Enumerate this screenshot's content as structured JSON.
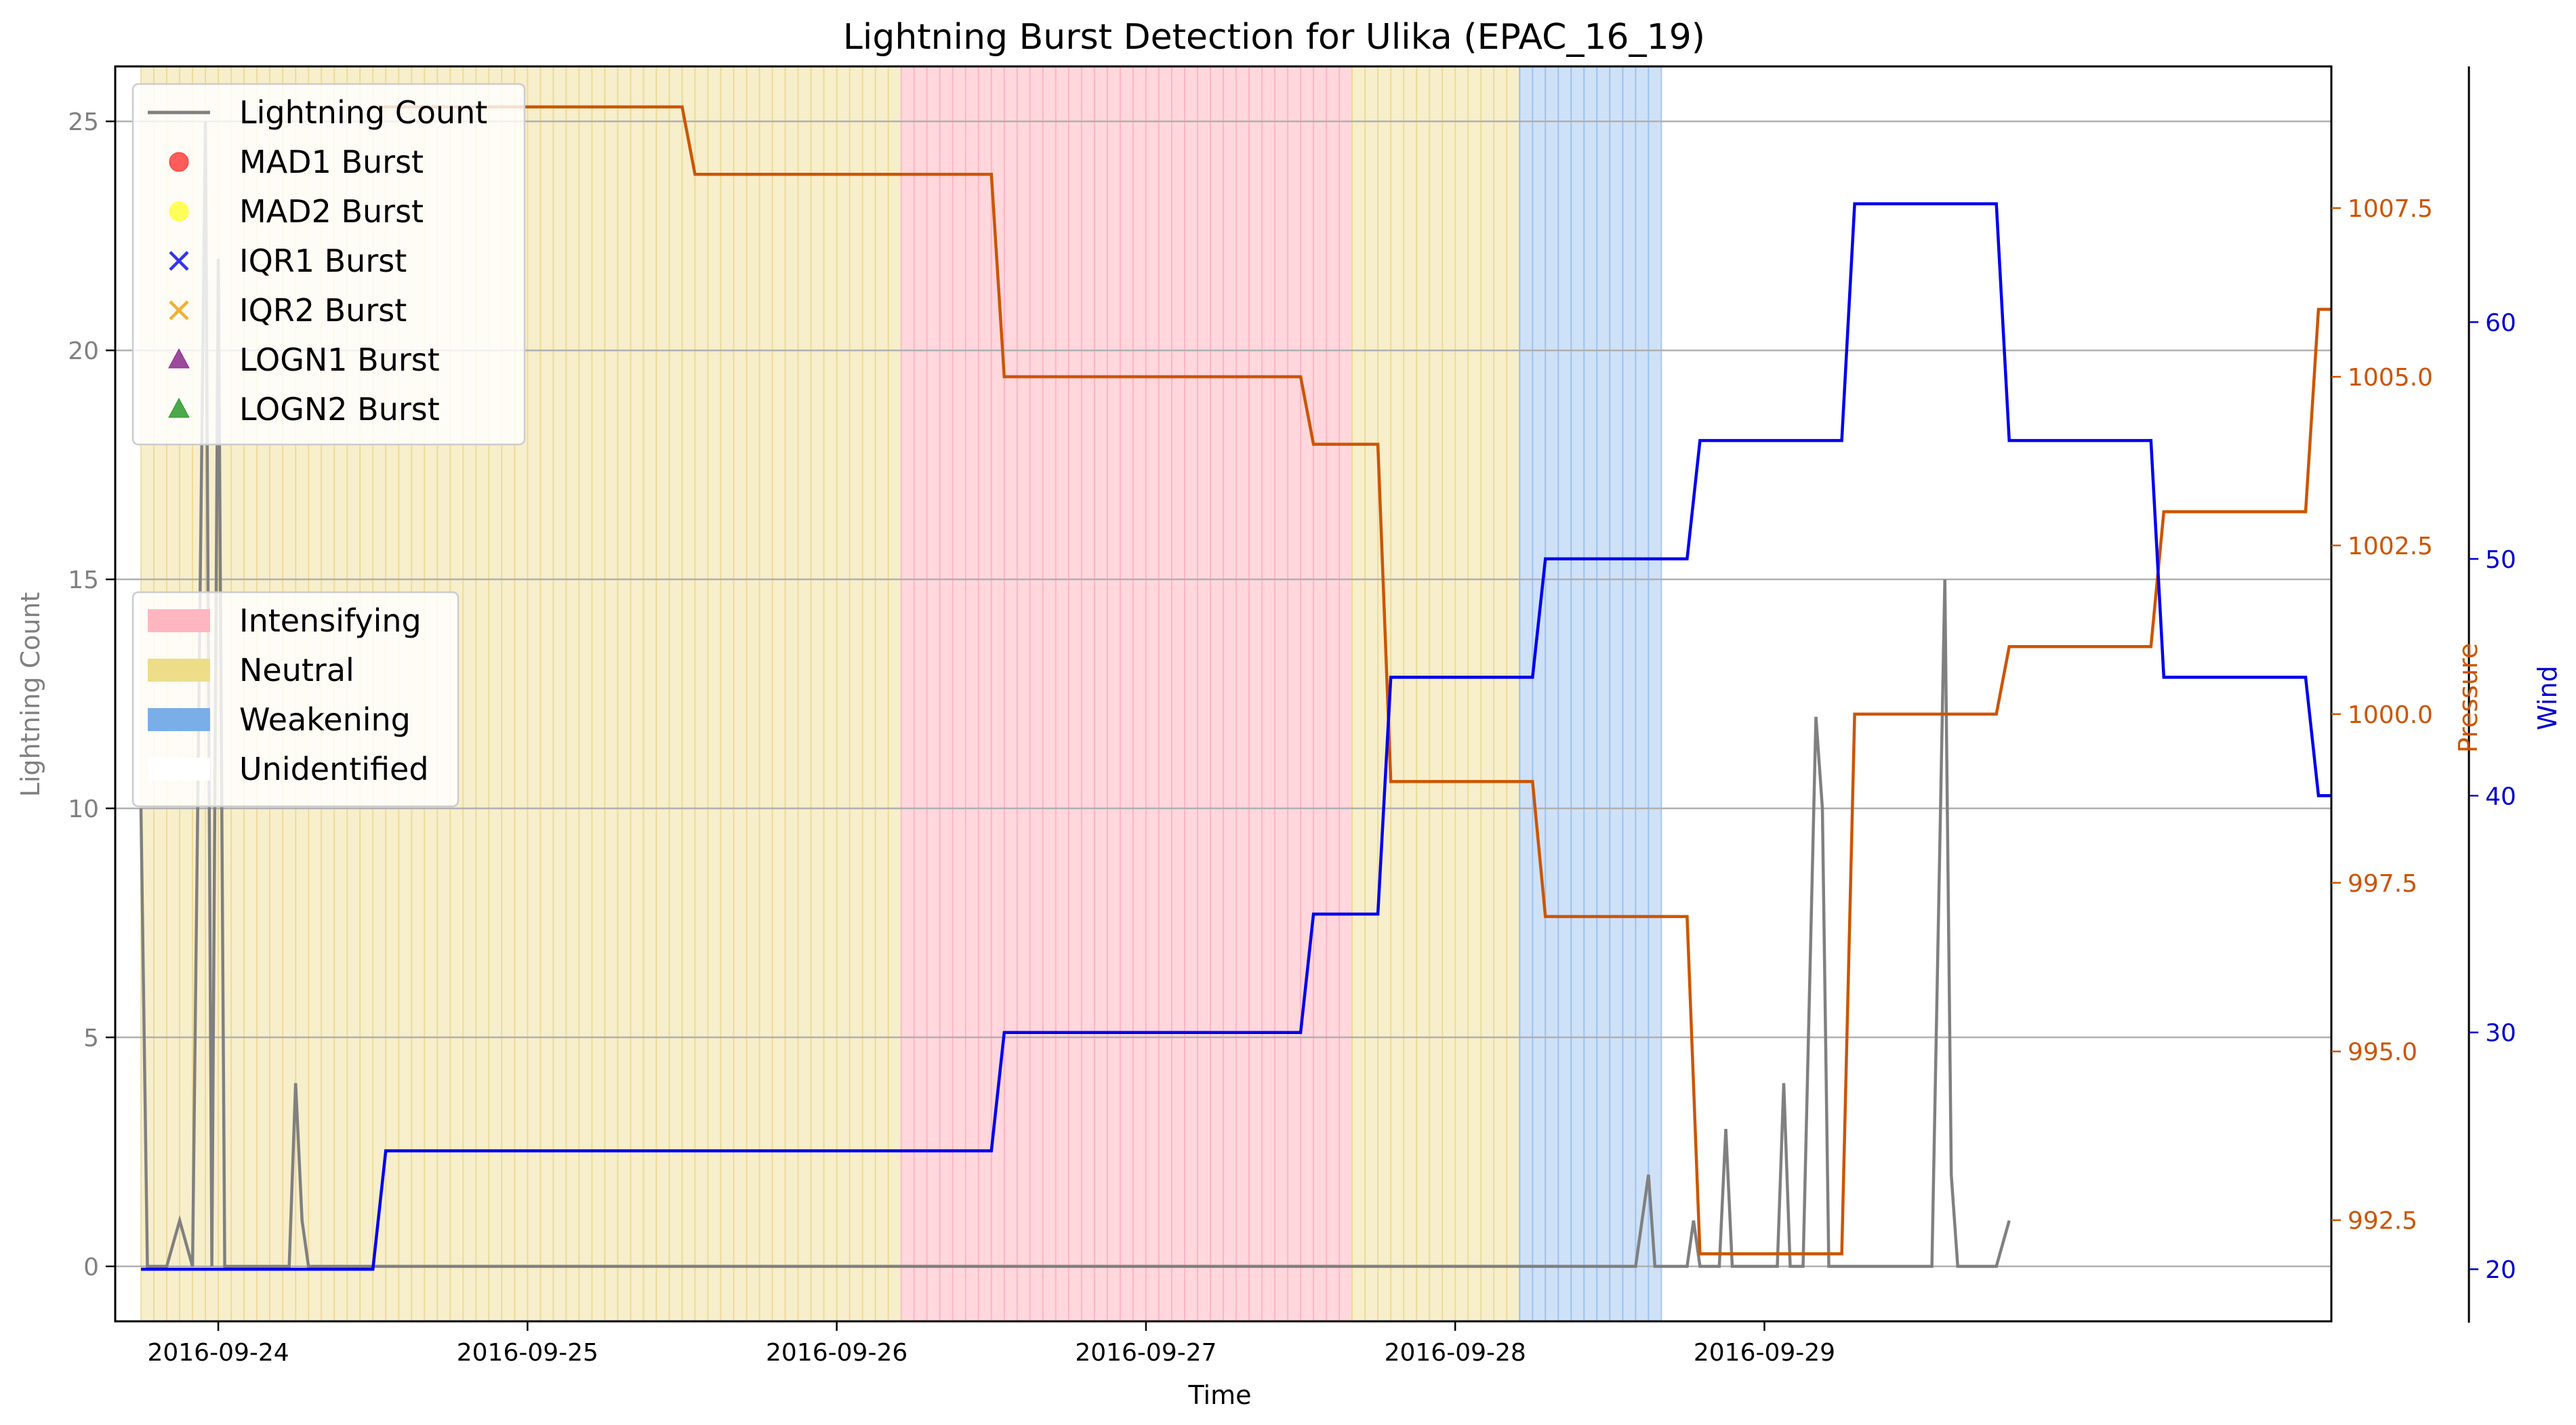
{
  "chart_data": {
    "type": "line",
    "title": "Lightning Burst Detection for Ulika (EPAC_16_19)",
    "xlabel": "Time",
    "ylabel_left": "Lightning Count",
    "ylabel_pressure": "Pressure",
    "ylabel_wind": "Wind",
    "x_ticks": [
      "2016-09-24",
      "2016-09-25",
      "2016-09-26",
      "2016-09-27",
      "2016-09-28",
      "2016-09-29"
    ],
    "xlim": [
      "2016-09-23 16:00",
      "2016-09-30 20:00"
    ],
    "lightning_ylim": [
      -1.2,
      26.2
    ],
    "lightning_ticks": [
      "0",
      "5",
      "10",
      "15",
      "20",
      "25"
    ],
    "pressure_ylim": [
      991.0,
      1009.6
    ],
    "pressure_ticks": [
      "992.5",
      "995.0",
      "997.5",
      "1000.0",
      "1002.5",
      "1005.0",
      "1007.5"
    ],
    "wind_ylim": [
      17.8,
      70.8
    ],
    "wind_ticks": [
      "20",
      "30",
      "40",
      "50",
      "60"
    ],
    "grid": "horizontal at lightning ticks",
    "colors": {
      "lightning": "#808080",
      "pressure": "#cc5500",
      "wind": "#0000ee",
      "intensifying": "#ffb6c1",
      "neutral": "#f0e0a0",
      "weakening": "#a8c8f0",
      "grid": "#b0b0b0"
    },
    "phases": [
      {
        "label": "Neutral",
        "start": "2016-09-23 18:00",
        "end": "2016-09-26 05:00"
      },
      {
        "label": "Intensifying",
        "start": "2016-09-26 05:00",
        "end": "2016-09-27 16:00"
      },
      {
        "label": "Neutral",
        "start": "2016-09-27 16:00",
        "end": "2016-09-28 05:00"
      },
      {
        "label": "Weakening",
        "start": "2016-09-28 05:00",
        "end": "2016-09-28 16:00"
      }
    ],
    "lightning": [
      [
        "2016-09-23 18:00",
        10
      ],
      [
        "2016-09-23 18:30",
        0
      ],
      [
        "2016-09-23 20:00",
        0
      ],
      [
        "2016-09-23 21:00",
        1
      ],
      [
        "2016-09-23 22:00",
        0
      ],
      [
        "2016-09-23 23:00",
        25
      ],
      [
        "2016-09-23 23:30",
        0
      ],
      [
        "2016-09-24 00:00",
        22
      ],
      [
        "2016-09-24 00:30",
        0
      ],
      [
        "2016-09-24 01:00",
        0
      ],
      [
        "2016-09-24 05:30",
        0
      ],
      [
        "2016-09-24 06:00",
        4
      ],
      [
        "2016-09-24 06:30",
        1
      ],
      [
        "2016-09-24 07:00",
        0
      ],
      [
        "2016-09-28 14:00",
        0
      ],
      [
        "2016-09-28 15:00",
        2
      ],
      [
        "2016-09-28 15:30",
        0
      ],
      [
        "2016-09-28 18:00",
        0
      ],
      [
        "2016-09-28 18:30",
        1
      ],
      [
        "2016-09-28 19:00",
        0
      ],
      [
        "2016-09-28 20:30",
        0
      ],
      [
        "2016-09-28 21:00",
        3
      ],
      [
        "2016-09-28 21:30",
        0
      ],
      [
        "2016-09-29 01:00",
        0
      ],
      [
        "2016-09-29 01:30",
        4
      ],
      [
        "2016-09-29 02:00",
        0
      ],
      [
        "2016-09-29 03:00",
        0
      ],
      [
        "2016-09-29 04:00",
        12
      ],
      [
        "2016-09-29 04:30",
        10
      ],
      [
        "2016-09-29 05:00",
        0
      ],
      [
        "2016-09-29 13:00",
        0
      ],
      [
        "2016-09-29 14:00",
        15
      ],
      [
        "2016-09-29 14:30",
        2
      ],
      [
        "2016-09-29 15:00",
        0
      ],
      [
        "2016-09-29 18:00",
        0
      ],
      [
        "2016-09-29 19:00",
        1
      ]
    ],
    "pressure": [
      [
        "2016-09-24 12:00",
        1009
      ],
      [
        "2016-09-25 12:00",
        1009
      ],
      [
        "2016-09-25 13:00",
        1008
      ],
      [
        "2016-09-26 12:00",
        1008
      ],
      [
        "2016-09-26 13:00",
        1005
      ],
      [
        "2016-09-27 12:00",
        1005
      ],
      [
        "2016-09-27 13:00",
        1004
      ],
      [
        "2016-09-27 18:00",
        1004
      ],
      [
        "2016-09-27 19:00",
        999
      ],
      [
        "2016-09-28 06:00",
        999
      ],
      [
        "2016-09-28 07:00",
        997
      ],
      [
        "2016-09-28 18:00",
        997
      ],
      [
        "2016-09-28 19:00",
        992
      ],
      [
        "2016-09-29 06:00",
        992
      ],
      [
        "2016-09-29 07:00",
        1000
      ],
      [
        "2016-09-29 18:00",
        1000
      ],
      [
        "2016-09-29 19:00",
        1001
      ],
      [
        "2016-09-30 06:00",
        1001
      ],
      [
        "2016-09-30 07:00",
        1003
      ],
      [
        "2016-09-30 18:00",
        1003
      ],
      [
        "2016-09-30 19:00",
        1006
      ],
      [
        "2016-09-30 20:00",
        1006
      ]
    ],
    "wind": [
      [
        "2016-09-23 18:00",
        20
      ],
      [
        "2016-09-24 12:00",
        20
      ],
      [
        "2016-09-24 13:00",
        25
      ],
      [
        "2016-09-26 12:00",
        25
      ],
      [
        "2016-09-26 13:00",
        30
      ],
      [
        "2016-09-27 12:00",
        30
      ],
      [
        "2016-09-27 13:00",
        35
      ],
      [
        "2016-09-27 18:00",
        35
      ],
      [
        "2016-09-27 19:00",
        45
      ],
      [
        "2016-09-28 06:00",
        45
      ],
      [
        "2016-09-28 07:00",
        50
      ],
      [
        "2016-09-28 18:00",
        50
      ],
      [
        "2016-09-28 19:00",
        55
      ],
      [
        "2016-09-29 06:00",
        55
      ],
      [
        "2016-09-29 07:00",
        65
      ],
      [
        "2016-09-29 18:00",
        65
      ],
      [
        "2016-09-29 19:00",
        55
      ],
      [
        "2016-09-30 06:00",
        55
      ],
      [
        "2016-09-30 07:00",
        45
      ],
      [
        "2016-09-30 18:00",
        45
      ],
      [
        "2016-09-30 19:00",
        40
      ],
      [
        "2016-09-30 20:00",
        40
      ]
    ],
    "legend_markers": [
      {
        "label": "Lightning Count",
        "kind": "line",
        "color": "#808080"
      },
      {
        "label": "MAD1 Burst",
        "kind": "circle",
        "color": "#ff3333"
      },
      {
        "label": "MAD2 Burst",
        "kind": "circle",
        "color": "#ffff33"
      },
      {
        "label": "IQR1 Burst",
        "kind": "cross",
        "color": "#3333ee"
      },
      {
        "label": "IQR2 Burst",
        "kind": "cross",
        "color": "#f0b030"
      },
      {
        "label": "LOGN1 Burst",
        "kind": "triangle",
        "color": "#8b2a8b"
      },
      {
        "label": "LOGN2 Burst",
        "kind": "triangle",
        "color": "#2a9a2a"
      }
    ],
    "legend_markers_placement": "top-left",
    "legend_phases": [
      {
        "label": "Intensifying",
        "color": "#ffb6c1"
      },
      {
        "label": "Neutral",
        "color": "#eedd88"
      },
      {
        "label": "Weakening",
        "color": "#7aaee8"
      },
      {
        "label": "Unidentified",
        "color": "#ffffff"
      }
    ],
    "legend_phases_placement": "center-left"
  }
}
